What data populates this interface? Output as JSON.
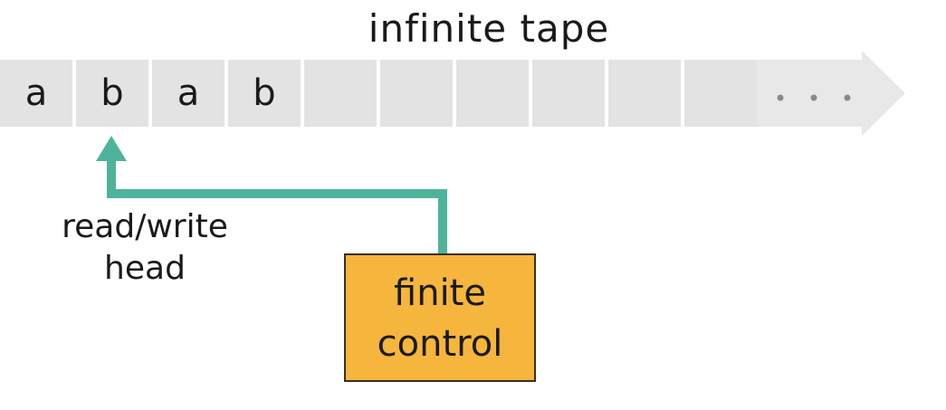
{
  "title": "infinite tape",
  "tape": {
    "cells": [
      "a",
      "b",
      "a",
      "b",
      "",
      "",
      "",
      "",
      "",
      ""
    ],
    "continuation": "...",
    "head_position": 1
  },
  "head": {
    "label_line1": "read/write",
    "label_line2": "head"
  },
  "control": {
    "line1": "finite",
    "line2": "control"
  },
  "colors": {
    "tape_cell": "#e3e3e3",
    "tape_arrow": "#e8e8e8",
    "head_line": "#4fb39c",
    "control_box": "#f6b53c",
    "text": "#1a1a1a"
  }
}
